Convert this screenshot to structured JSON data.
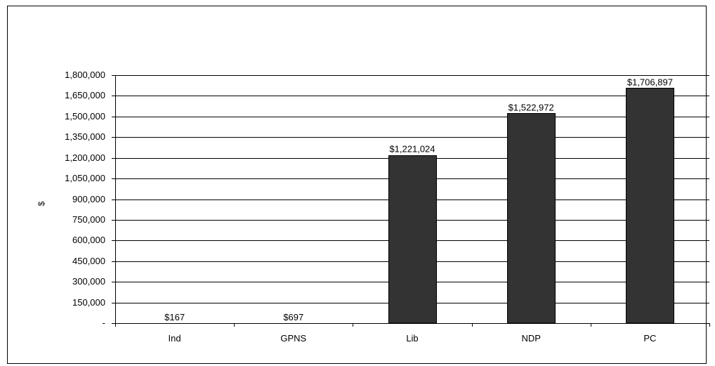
{
  "chart_data": {
    "type": "bar",
    "categories": [
      "Ind",
      "GPNS",
      "Lib",
      "NDP",
      "PC"
    ],
    "values": [
      167,
      697,
      1221024,
      1522972,
      1706897
    ],
    "data_labels": [
      "$167",
      "$697",
      "$1,221,024",
      "$1,522,972",
      "$1,706,897"
    ],
    "title": "",
    "xlabel": "",
    "ylabel": "$",
    "ylim": [
      0,
      1800000
    ],
    "ytick_values": [
      0,
      150000,
      300000,
      450000,
      600000,
      750000,
      900000,
      1050000,
      1200000,
      1350000,
      1500000,
      1650000,
      1800000
    ],
    "ytick_labels": [
      "-",
      "150,000",
      "300,000",
      "450,000",
      "600,000",
      "750,000",
      "900,000",
      "1,050,000",
      "1,200,000",
      "1,350,000",
      "1,500,000",
      "1,650,000",
      "1,800,000"
    ],
    "grid": true,
    "legend": "none",
    "colors": {
      "bar": "#333333",
      "bar_stroke": "#000000",
      "grid": "#000000",
      "axis": "#000000"
    }
  }
}
